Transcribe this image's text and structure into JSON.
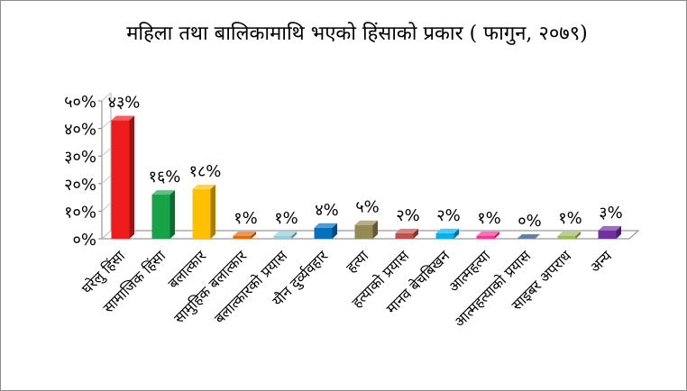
{
  "chart_data": {
    "type": "bar",
    "title": "महिला तथा बालिकामाथि भएको हिंसाको प्रकार ( फागुन, २०७९)",
    "categories": [
      "घरेलु हिंसा",
      "सामाजिक हिंसा",
      "बलात्कार",
      "सामुहिक बलात्कार",
      "बलात्कारको प्रयास",
      "यौन दुर्व्यवहार",
      "हत्या",
      "हत्याको प्रयास",
      "मानव बेचबिखन",
      "आत्महत्या",
      "आत्महत्याको प्रयास",
      "साइबर अपराध",
      "अन्य"
    ],
    "values": [
      43,
      16,
      18,
      1,
      1,
      4,
      5,
      2,
      2,
      1,
      0,
      1,
      3
    ],
    "data_labels": [
      "४३%",
      "१६%",
      "१८%",
      "१%",
      "१%",
      "४%",
      "५%",
      "२%",
      "२%",
      "१%",
      "०%",
      "१%",
      "३%"
    ],
    "yticks": [
      "०%",
      "१०%",
      "२०%",
      "३०%",
      "४०%",
      "५०%"
    ],
    "ylim": [
      0,
      50
    ],
    "xlabel": "",
    "ylabel": "",
    "grid": false,
    "legend": "none",
    "colors": [
      "#ee1c1c",
      "#17a34a",
      "#ffc000",
      "#e36c09",
      "#92cddc",
      "#0070c0",
      "#948a54",
      "#c0504d",
      "#00b0f0",
      "#ff3399",
      "#1f497d",
      "#9bbb59",
      "#7030a0"
    ]
  }
}
